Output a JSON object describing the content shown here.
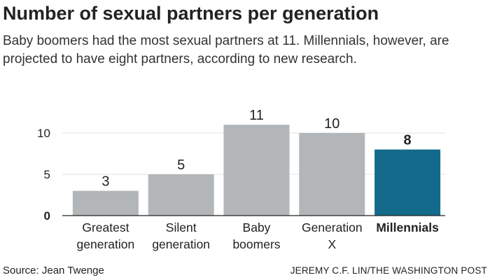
{
  "title": "Number of sexual partners per generation",
  "subtitle": "Baby boomers had the most sexual partners at 11. Millennials, however, are projected to have eight partners, according to new research.",
  "source": "Source: Jean Twenge",
  "credit": "JEREMY C.F. LIN/THE WASHINGTON POST",
  "colors": {
    "bar_default": "#b3b6b8",
    "bar_highlight": "#136a8a",
    "axis_text": "#222222"
  },
  "chart_data": {
    "type": "bar",
    "categories": [
      [
        "Greatest",
        "generation"
      ],
      [
        "Silent",
        "generation"
      ],
      [
        "Baby",
        "boomers"
      ],
      [
        "Generation",
        "X"
      ],
      [
        "Millennials"
      ]
    ],
    "values": [
      3,
      5,
      11,
      10,
      8
    ],
    "value_labels": [
      "3",
      "5",
      "11",
      "10",
      "8"
    ],
    "highlight_index": 4,
    "yticks": [
      0,
      5,
      10
    ],
    "ytick_labels": [
      "0",
      "5",
      "10"
    ],
    "ylim": [
      0,
      11
    ],
    "grid": true,
    "xlabel": "",
    "ylabel": ""
  }
}
